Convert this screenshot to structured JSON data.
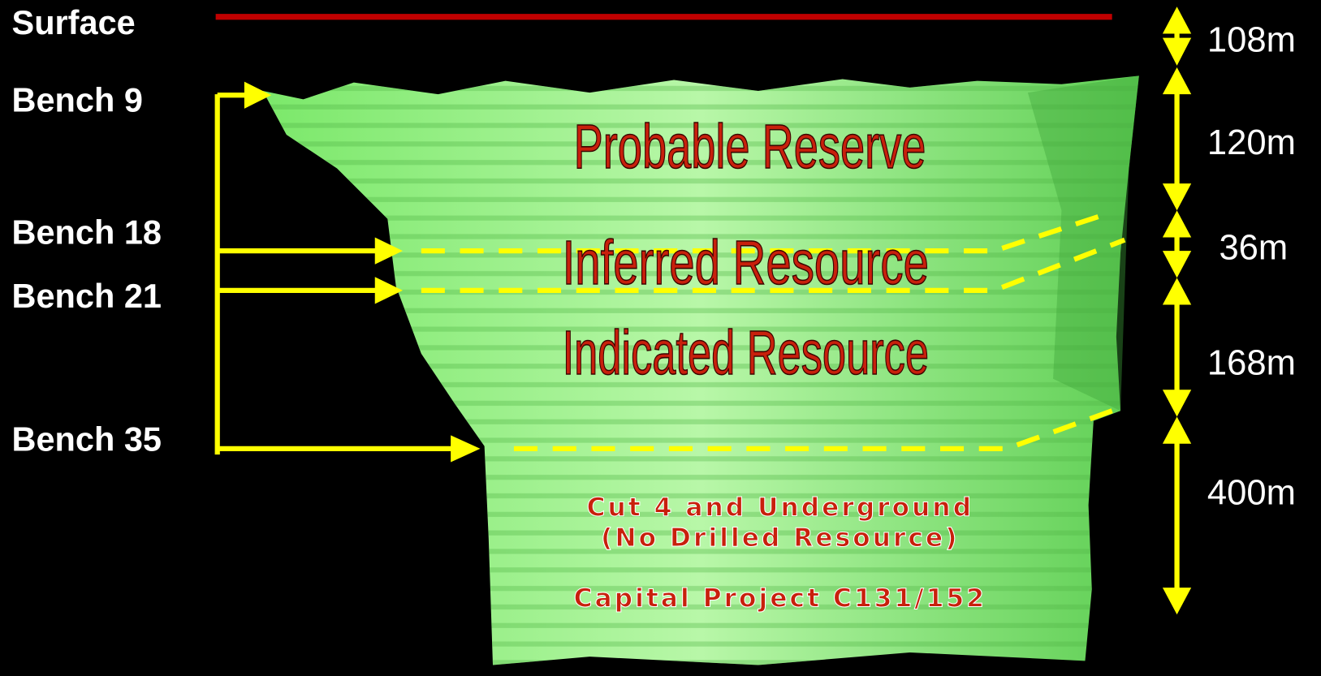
{
  "levels": [
    "Surface",
    "Bench 9",
    "Bench 18",
    "Bench 21",
    "Bench 35"
  ],
  "depths": [
    "108m",
    "120m",
    "36m",
    "168m",
    "400m"
  ],
  "zones": [
    "Probable Reserve",
    "Inferred Resource",
    "Indicated Resource"
  ],
  "note": {
    "lines": [
      "Cut 4 and Underground",
      "(No Drilled Resource)"
    ],
    "project": "Capital Project C131/152"
  }
}
